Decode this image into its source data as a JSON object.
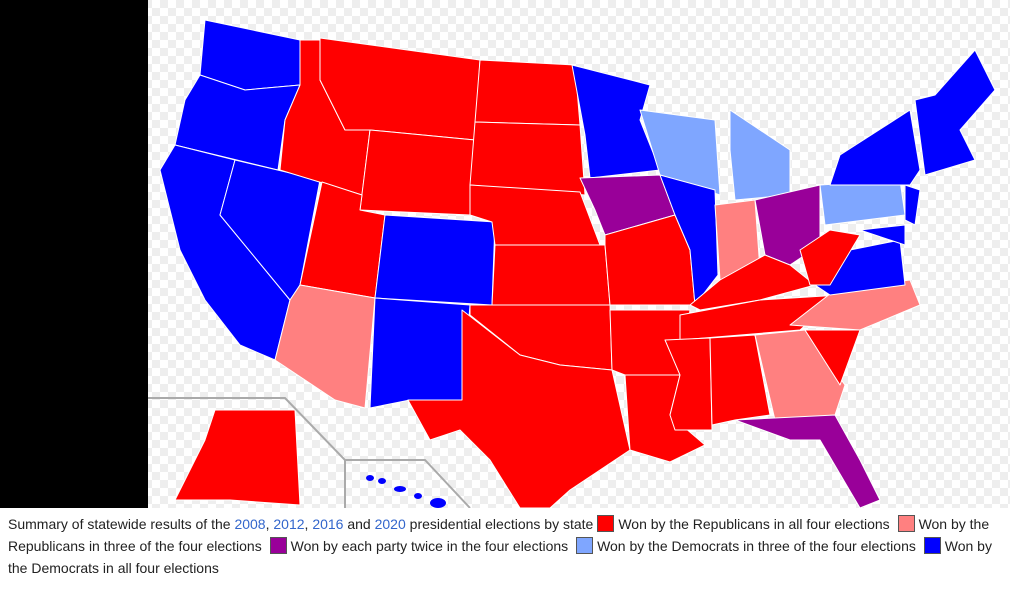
{
  "caption": {
    "intro": "Summary of statewide results of the",
    "years": [
      "2008",
      "2012",
      "2016",
      "2020"
    ],
    "separators": [
      ",",
      ",",
      "and"
    ],
    "outro": "presidential elections by state"
  },
  "legend": [
    {
      "label": "Won by the Republicans in all four elections",
      "color": "#ff0000"
    },
    {
      "label": "Won by the Republicans in three of the four elections",
      "color": "#ff8080"
    },
    {
      "label": "Won by each party twice in the four elections",
      "color": "#990099"
    },
    {
      "label": "Won by the Democrats in three of the four elections",
      "color": "#7fa6ff"
    },
    {
      "label": "Won by the Democrats in all four elections",
      "color": "#0000ff"
    }
  ]
}
